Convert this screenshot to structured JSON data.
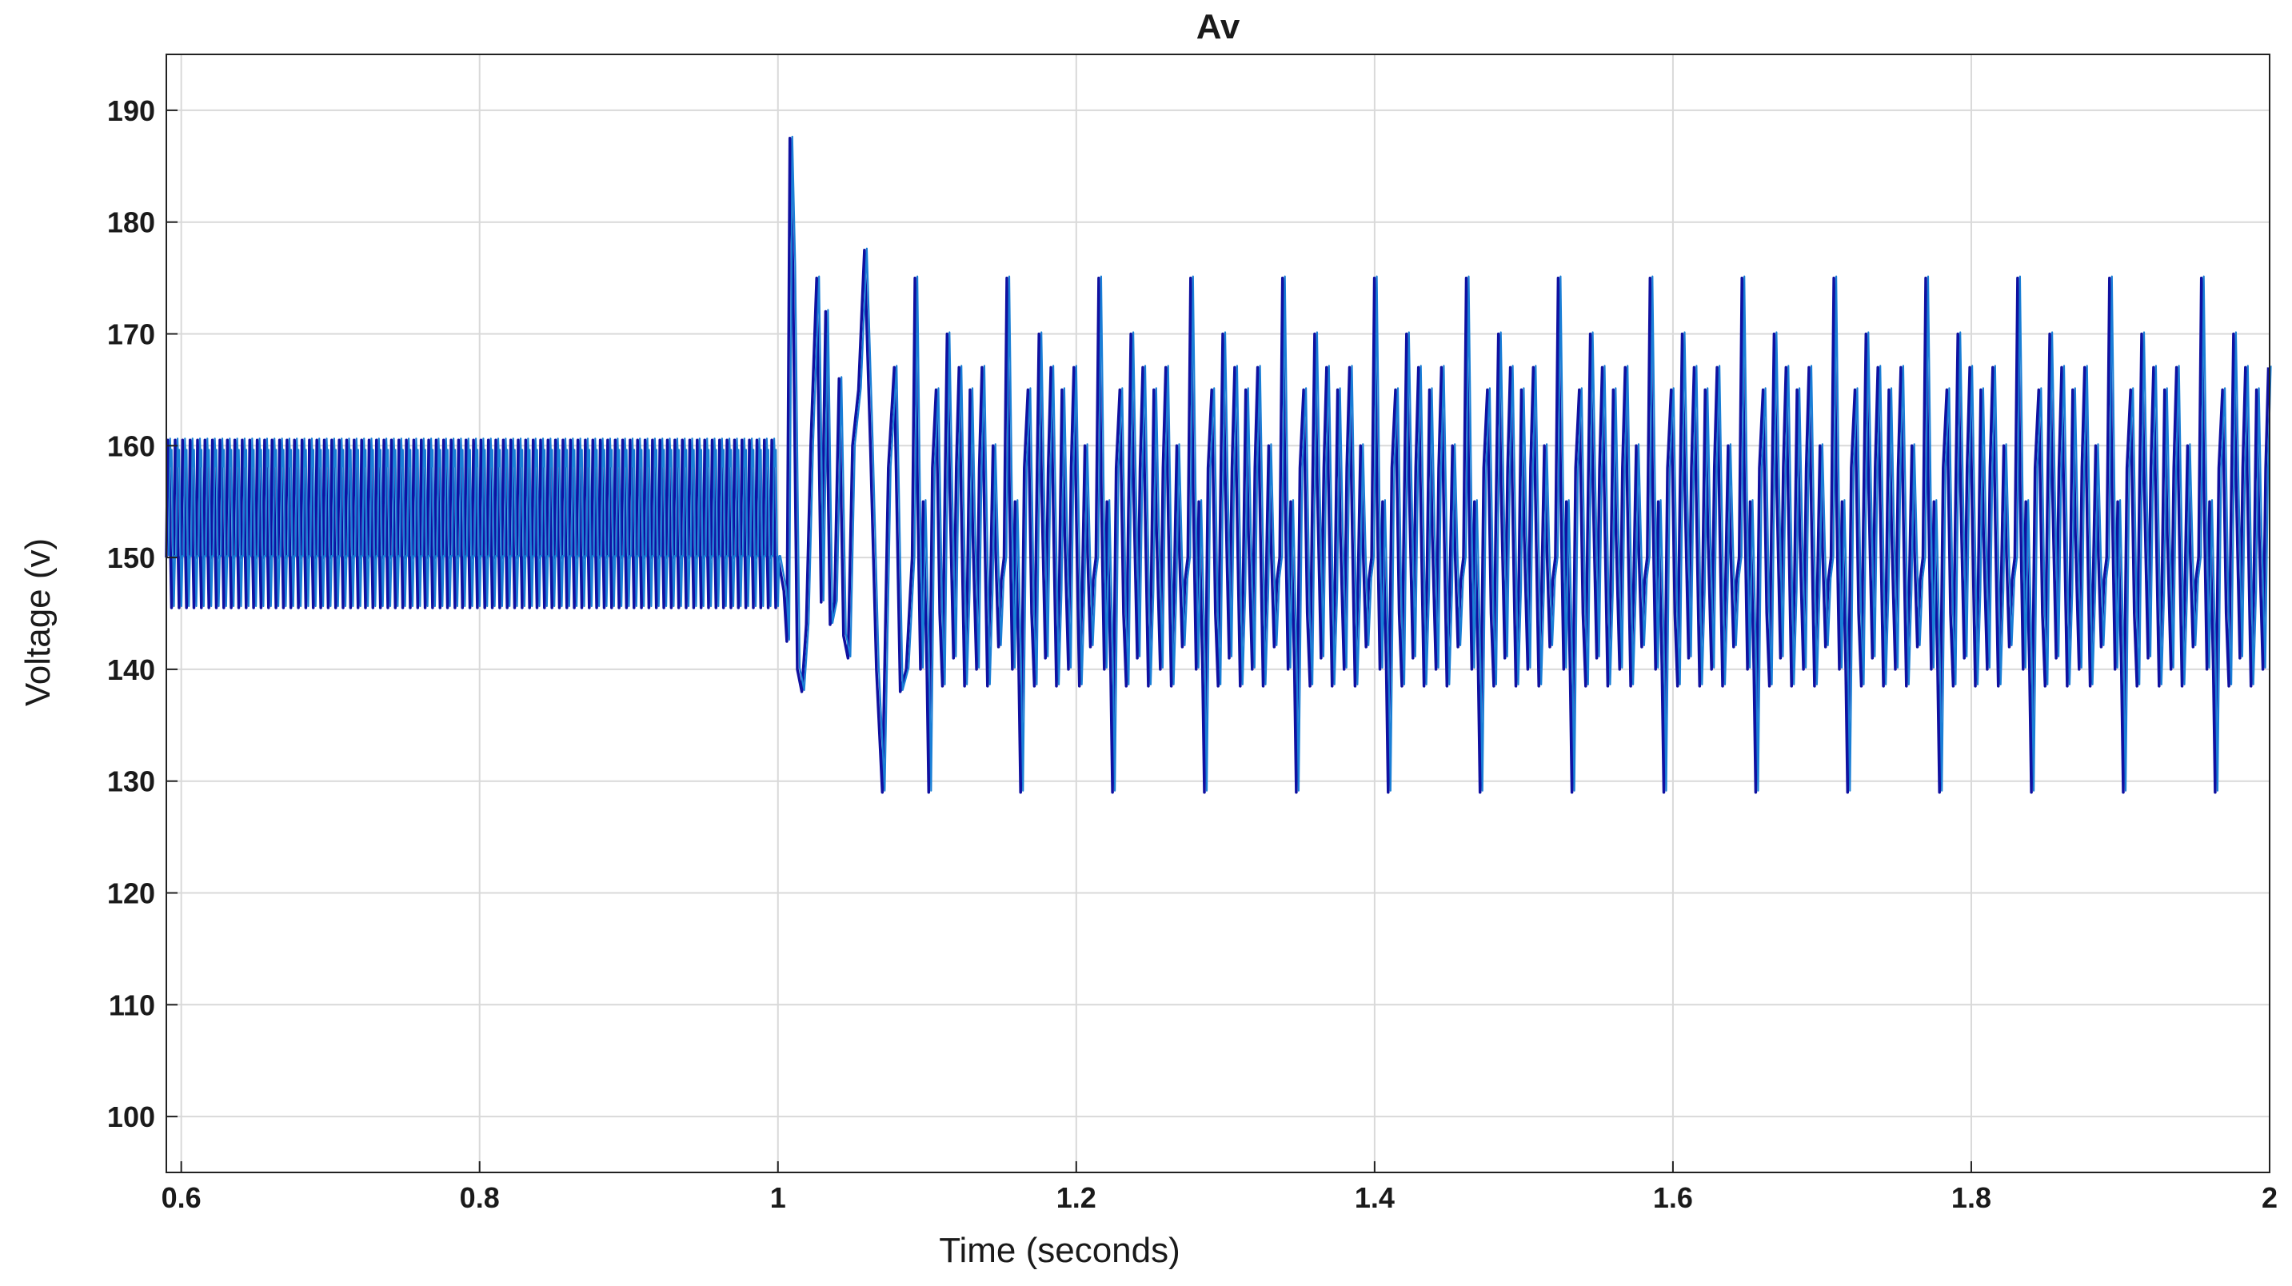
{
  "chart_data": {
    "type": "line",
    "title": "Av",
    "xlabel": "Time (seconds)",
    "ylabel": "Voltage (v)",
    "xlim": [
      0.59,
      2.0
    ],
    "ylim": [
      95,
      195
    ],
    "grid": true,
    "x_ticks": [
      0.6,
      0.8,
      1,
      1.2,
      1.4,
      1.6,
      1.8,
      2
    ],
    "x_tick_labels": [
      "0.6",
      "0.8",
      "1",
      "1.2",
      "1.4",
      "1.6",
      "1.8",
      "2"
    ],
    "y_ticks": [
      100,
      110,
      120,
      130,
      140,
      150,
      160,
      170,
      180,
      190
    ],
    "y_tick_labels": [
      "100",
      "110",
      "120",
      "130",
      "140",
      "150",
      "160",
      "170",
      "180",
      "190"
    ],
    "colors": {
      "series_dark": "#1010a0",
      "series_light": "#1a7fd6",
      "grid": "#d9d9d9",
      "axes": "#222222"
    },
    "series": [
      {
        "description": "steady ripple before disturbance",
        "t_start": 0.59,
        "t_end": 1.0,
        "period": 0.005,
        "y_max": 160.5,
        "y_min": 145.5,
        "y_mid": 150
      },
      {
        "description": "transient after disturbance at t = 1",
        "points": [
          [
            1.0,
            150
          ],
          [
            1.004,
            147
          ],
          [
            1.006,
            142.5
          ],
          [
            1.008,
            187.5
          ],
          [
            1.01,
            176
          ],
          [
            1.013,
            140
          ],
          [
            1.016,
            138
          ],
          [
            1.019,
            144
          ],
          [
            1.022,
            160
          ],
          [
            1.026,
            175
          ],
          [
            1.029,
            146
          ],
          [
            1.032,
            172
          ],
          [
            1.035,
            144
          ],
          [
            1.038,
            146
          ],
          [
            1.041,
            166
          ],
          [
            1.044,
            143
          ],
          [
            1.047,
            141
          ],
          [
            1.05,
            160
          ],
          [
            1.054,
            165
          ],
          [
            1.058,
            177.5
          ],
          [
            1.062,
            160
          ],
          [
            1.066,
            140
          ],
          [
            1.07,
            129
          ],
          [
            1.074,
            158
          ],
          [
            1.078,
            167
          ],
          [
            1.082,
            138
          ],
          [
            1.086,
            140
          ],
          [
            1.09,
            150
          ]
        ]
      },
      {
        "description": "repeating oscillation after transient",
        "t_start": 1.09,
        "t_end": 2.0,
        "period": 0.0616,
        "shape": [
          [
            0.0,
            150
          ],
          [
            0.03,
            175
          ],
          [
            0.06,
            155
          ],
          [
            0.09,
            140
          ],
          [
            0.12,
            155
          ],
          [
            0.16,
            140
          ],
          [
            0.18,
            129
          ],
          [
            0.22,
            158
          ],
          [
            0.26,
            165
          ],
          [
            0.3,
            145
          ],
          [
            0.33,
            138.5
          ],
          [
            0.35,
            152
          ],
          [
            0.38,
            170
          ],
          [
            0.41,
            156
          ],
          [
            0.45,
            141
          ],
          [
            0.48,
            158
          ],
          [
            0.51,
            167
          ],
          [
            0.54,
            152
          ],
          [
            0.57,
            138.5
          ],
          [
            0.6,
            147
          ],
          [
            0.63,
            165
          ],
          [
            0.66,
            152
          ],
          [
            0.7,
            140
          ],
          [
            0.73,
            158
          ],
          [
            0.76,
            167
          ],
          [
            0.79,
            152
          ],
          [
            0.82,
            138.5
          ],
          [
            0.85,
            147
          ],
          [
            0.88,
            160
          ],
          [
            0.91,
            150
          ],
          [
            0.94,
            142
          ],
          [
            0.97,
            148
          ],
          [
            1.0,
            150
          ]
        ]
      }
    ]
  }
}
